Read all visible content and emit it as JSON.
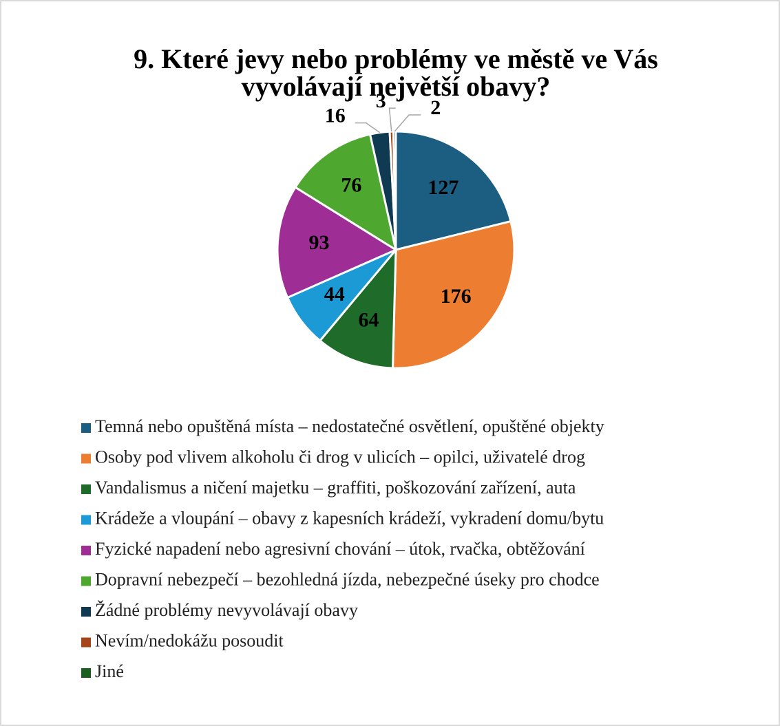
{
  "chart_data": {
    "type": "pie",
    "title": [
      "9. Které jevy nebo problémy ve městě ve Vás",
      "vyvolávají největší obavy?"
    ],
    "categories": [
      "Temná nebo opuštěná místa – nedostatečné osvětlení, opuštěné objekty",
      "Osoby pod vlivem alkoholu či drog v ulicích – opilci, uživatelé drog",
      "Vandalismus a ničení majetku – graffiti, poškozování zařízení, auta",
      "Krádeže a vloupání – obavy z kapesních krádeží, vykradení domu/bytu",
      "Fyzické napadení nebo agresivní chování – útok, rvačka, obtěžování",
      "Dopravní nebezpečí – bezohledná jízda, nebezpečné úseky pro chodce",
      "Žádné problémy nevyvolávají obavy",
      "Nevím/nedokážu posoudit",
      "Jiné"
    ],
    "values": [
      127,
      176,
      64,
      44,
      93,
      76,
      16,
      3,
      2
    ],
    "colors": [
      "#1b5e82",
      "#ed7d31",
      "#1e6b2a",
      "#1b9ad6",
      "#9e2d96",
      "#4ea72e",
      "#0f3a52",
      "#a5461a",
      "#1a5e20"
    ],
    "legend": "bottom"
  }
}
